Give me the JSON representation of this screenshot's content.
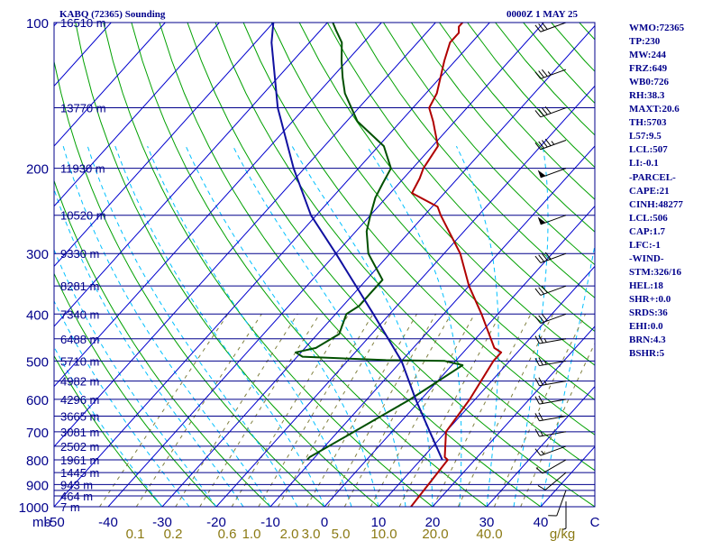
{
  "header": {
    "station": "KABQ (72365) Sounding",
    "valid": "0000Z  1 MAY 25"
  },
  "indices": [
    "WMO:72365",
    "TP:230",
    "MW:244",
    "FRZ:649",
    "WB0:726",
    "RH:38.3",
    "MAXT:20.6",
    "TH:5703",
    "L57:9.5",
    "LCL:507",
    "LI:-0.1",
    "-PARCEL-",
    "CAPE:21",
    "CINH:48277",
    "LCL:506",
    "CAP:1.7",
    "LFC:-1",
    "-WIND-",
    "STM:326/16",
    "HEL:18",
    "SHR+:0.0",
    "SRDS:36",
    "EHI:0.0",
    "BRN:4.3",
    "BSHR:5"
  ],
  "colors": {
    "frame": "#00008b",
    "isobar": "#00008b",
    "isotherm": "#0000cd",
    "dry_adiabat": "#00a000",
    "moist_adiabat": "#00c0ff",
    "mixing_ratio": "#808040",
    "temperature": "#b00000",
    "dewpoint": "#005000",
    "parcel": "#1010a0",
    "wind": "#000000",
    "mixing_label": "#8b7a14"
  },
  "chart_data": {
    "type": "skew-t",
    "title": "KABQ (72365) Sounding",
    "valid": "0000Z  1 MAY 25",
    "pressure_unit": "mb",
    "temperature_unit": "C",
    "mixing_ratio_unit": "g/kg",
    "plim": [
      1000,
      100
    ],
    "tlim_at_1000mb": [
      -50,
      50
    ],
    "pressure_labels": [
      100,
      200,
      300,
      400,
      500,
      600,
      700,
      800,
      900,
      1000
    ],
    "isobars": [
      100,
      150,
      200,
      250,
      300,
      350,
      400,
      450,
      500,
      550,
      600,
      650,
      700,
      750,
      800,
      850,
      900,
      925,
      950,
      1000
    ],
    "height_labels": [
      {
        "p": 100,
        "h": "16510 m"
      },
      {
        "p": 150,
        "h": "13770 m"
      },
      {
        "p": 200,
        "h": "11930 m"
      },
      {
        "p": 250,
        "h": "10520 m"
      },
      {
        "p": 300,
        "h": "9330 m"
      },
      {
        "p": 350,
        "h": "8281 m"
      },
      {
        "p": 400,
        "h": "7340 m"
      },
      {
        "p": 450,
        "h": "6488 m"
      },
      {
        "p": 500,
        "h": "5710 m"
      },
      {
        "p": 550,
        "h": "4982 m"
      },
      {
        "p": 600,
        "h": "4296 m"
      },
      {
        "p": 650,
        "h": "3665 m"
      },
      {
        "p": 700,
        "h": "3081 m"
      },
      {
        "p": 750,
        "h": "2502 m"
      },
      {
        "p": 800,
        "h": "1961 m"
      },
      {
        "p": 850,
        "h": "1445 m"
      },
      {
        "p": 900,
        "h": "943 m"
      },
      {
        "p": 950,
        "h": "464 m"
      },
      {
        "p": 1000,
        "h": "7 m"
      }
    ],
    "temperature_ticks": [
      {
        "t": -50,
        "label": "-50"
      },
      {
        "t": -40,
        "label": "-40"
      },
      {
        "t": -30,
        "label": "-30"
      },
      {
        "t": -20,
        "label": "-20"
      },
      {
        "t": -10,
        "label": "-10"
      },
      {
        "t": 0,
        "label": "0"
      },
      {
        "t": 10,
        "label": "10"
      },
      {
        "t": 20,
        "label": "20"
      },
      {
        "t": 30,
        "label": "30"
      },
      {
        "t": 40,
        "label": "40"
      },
      {
        "t": 50,
        "label": "C"
      }
    ],
    "mixing_ratio_ticks": [
      {
        "t": -35,
        "label": "0.1"
      },
      {
        "t": -28,
        "label": "0.2"
      },
      {
        "t": -18,
        "label": "0.6"
      },
      {
        "t": -13.5,
        "label": "1.0"
      },
      {
        "t": -6.5,
        "label": "2.0"
      },
      {
        "t": -2.5,
        "label": "3.0"
      },
      {
        "t": 3,
        "label": "5.0"
      },
      {
        "t": 11,
        "label": "10.0"
      },
      {
        "t": 20.5,
        "label": "20.0"
      },
      {
        "t": 30.5,
        "label": "40.0"
      },
      {
        "t": 44,
        "label": "g/kg"
      }
    ],
    "mb_label": "mb",
    "series": [
      {
        "key": "temperature",
        "points": [
          [
            1000,
            16
          ],
          [
            800,
            15
          ],
          [
            790,
            14
          ],
          [
            700,
            10
          ],
          [
            600,
            9
          ],
          [
            500,
            7
          ],
          [
            480,
            7
          ],
          [
            470,
            5
          ],
          [
            400,
            -3
          ],
          [
            350,
            -10
          ],
          [
            300,
            -17
          ],
          [
            250,
            -27
          ],
          [
            240,
            -29
          ],
          [
            225,
            -36
          ],
          [
            210,
            -37
          ],
          [
            200,
            -38
          ],
          [
            180,
            -39
          ],
          [
            160,
            -44
          ],
          [
            150,
            -47
          ],
          [
            140,
            -48
          ],
          [
            120,
            -52
          ],
          [
            110,
            -54
          ],
          [
            105,
            -54
          ],
          [
            102,
            -55
          ],
          [
            100,
            -55
          ]
        ]
      },
      {
        "key": "dewpoint",
        "points": [
          [
            800,
            -11
          ],
          [
            790,
            -11
          ],
          [
            700,
            -7
          ],
          [
            600,
            -2
          ],
          [
            510,
            2
          ],
          [
            500,
            -2
          ],
          [
            498,
            -13
          ],
          [
            490,
            -29
          ],
          [
            480,
            -31
          ],
          [
            470,
            -28
          ],
          [
            440,
            -26
          ],
          [
            400,
            -28
          ],
          [
            385,
            -27
          ],
          [
            360,
            -27
          ],
          [
            340,
            -27
          ],
          [
            300,
            -34
          ],
          [
            270,
            -38
          ],
          [
            250,
            -40
          ],
          [
            230,
            -42
          ],
          [
            215,
            -43
          ],
          [
            200,
            -44
          ],
          [
            180,
            -49
          ],
          [
            160,
            -58
          ],
          [
            140,
            -65
          ],
          [
            130,
            -68
          ],
          [
            120,
            -71
          ],
          [
            110,
            -74
          ],
          [
            104,
            -77
          ],
          [
            100,
            -79
          ]
        ]
      },
      {
        "key": "parcel",
        "points": [
          [
            800,
            14
          ],
          [
            700,
            7
          ],
          [
            600,
            -1
          ],
          [
            500,
            -10
          ],
          [
            400,
            -23
          ],
          [
            300,
            -40
          ],
          [
            250,
            -51
          ],
          [
            200,
            -62
          ],
          [
            150,
            -75
          ],
          [
            110,
            -87
          ],
          [
            100,
            -90
          ]
        ]
      }
    ],
    "wind_barbs": [
      {
        "p": 975,
        "dir": 180,
        "spd": 5
      },
      {
        "p": 925,
        "dir": 200,
        "spd": 10
      },
      {
        "p": 850,
        "dir": 230,
        "spd": 10
      },
      {
        "p": 800,
        "dir": 240,
        "spd": 10
      },
      {
        "p": 750,
        "dir": 250,
        "spd": 15
      },
      {
        "p": 700,
        "dir": 260,
        "spd": 15
      },
      {
        "p": 650,
        "dir": 260,
        "spd": 20
      },
      {
        "p": 600,
        "dir": 260,
        "spd": 20
      },
      {
        "p": 550,
        "dir": 260,
        "spd": 25
      },
      {
        "p": 500,
        "dir": 260,
        "spd": 25
      },
      {
        "p": 450,
        "dir": 260,
        "spd": 25
      },
      {
        "p": 400,
        "dir": 250,
        "spd": 30
      },
      {
        "p": 350,
        "dir": 250,
        "spd": 30
      },
      {
        "p": 300,
        "dir": 250,
        "spd": 40
      },
      {
        "p": 250,
        "dir": 250,
        "spd": 50
      },
      {
        "p": 200,
        "dir": 250,
        "spd": 50
      },
      {
        "p": 175,
        "dir": 250,
        "spd": 45
      },
      {
        "p": 150,
        "dir": 250,
        "spd": 40
      },
      {
        "p": 125,
        "dir": 250,
        "spd": 35
      },
      {
        "p": 100,
        "dir": 250,
        "spd": 30
      }
    ]
  }
}
